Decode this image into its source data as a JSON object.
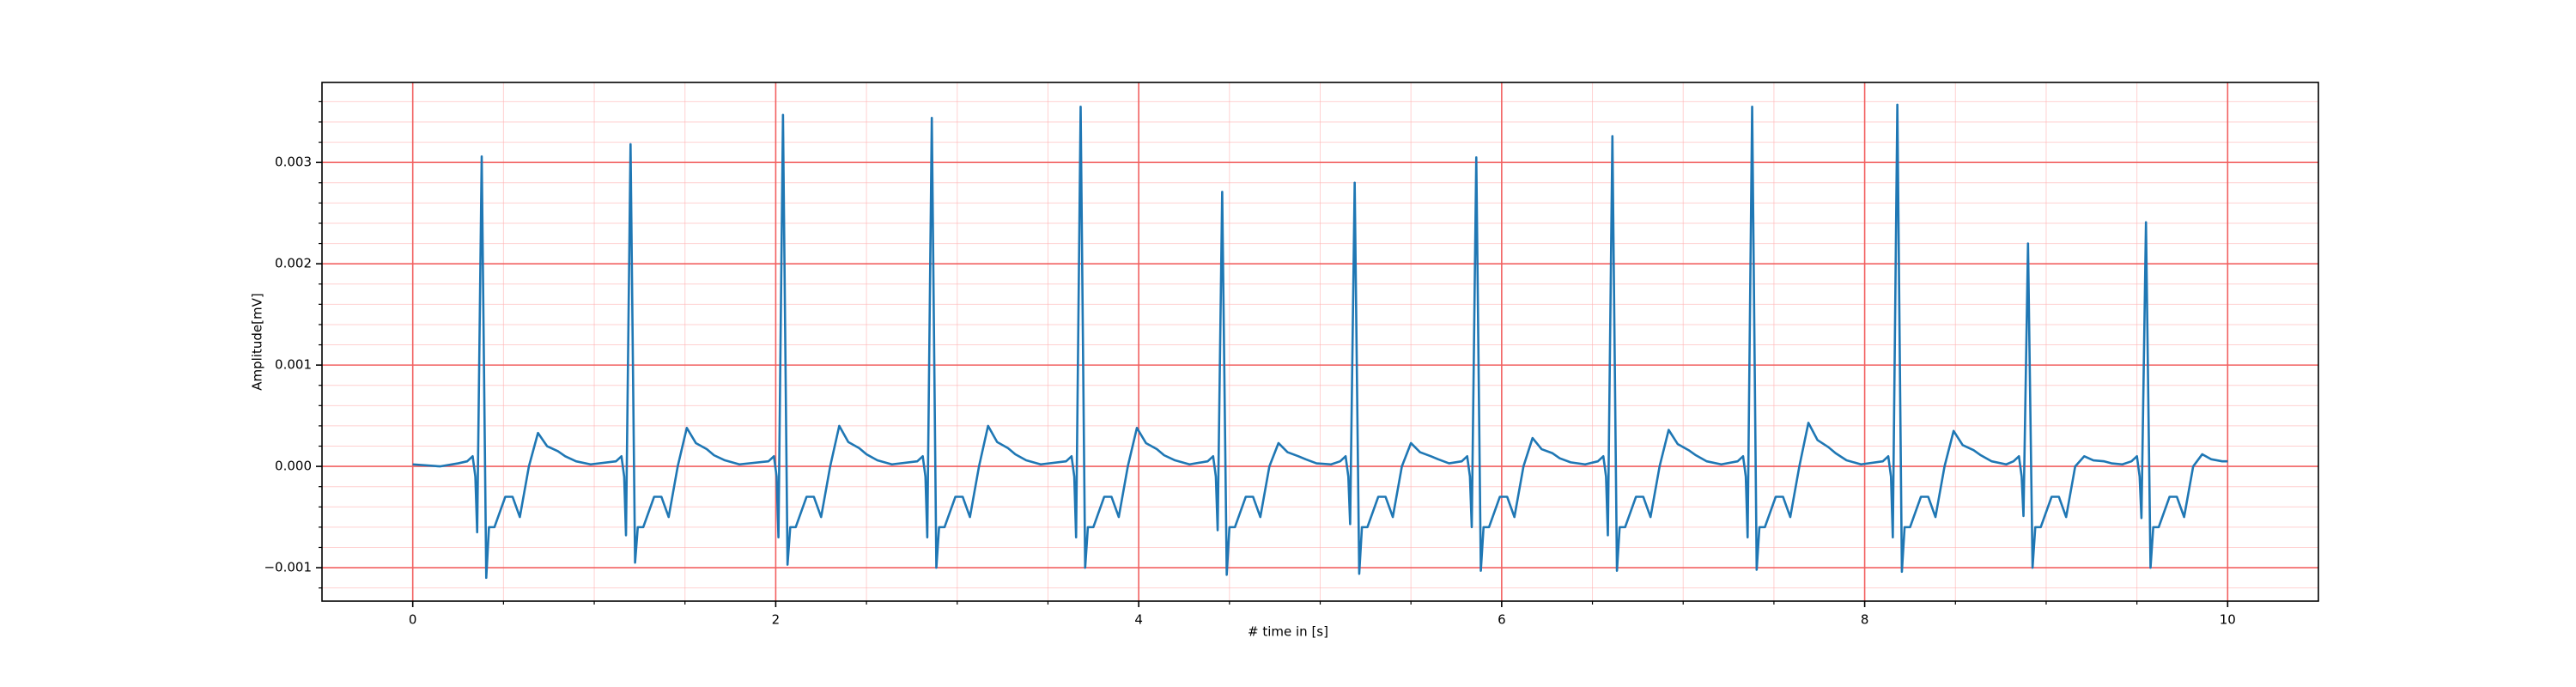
{
  "chart_data": {
    "type": "line",
    "xlabel": "# time in [s]",
    "ylabel": "Amplitude[mV]",
    "color": "#1f77b4",
    "grid": true,
    "minor_grid": true,
    "xlim": [
      -0.5,
      10.5
    ],
    "ylim": [
      -0.00133,
      0.00379
    ],
    "xticks": [
      0,
      2,
      4,
      6,
      8,
      10
    ],
    "yticks": [
      {
        "value": -0.001,
        "label": "−0.001"
      },
      {
        "value": 0,
        "label": "0.000"
      },
      {
        "value": 0.001,
        "label": "0.001"
      },
      {
        "value": 0.002,
        "label": "0.002"
      },
      {
        "value": 0.003,
        "label": "0.003"
      }
    ],
    "xminorticks": [
      0.5,
      1,
      1.5,
      2.5,
      3,
      3.5,
      4.5,
      5,
      5.5,
      6.5,
      7,
      7.5,
      8.5,
      9,
      9.5
    ],
    "yminorticks": [
      -0.0012,
      -0.0008,
      -0.0006,
      -0.0004,
      -0.0002,
      0.0002,
      0.0004,
      0.0006,
      0.0008,
      0.0012,
      0.0014,
      0.0016,
      0.0018,
      0.0022,
      0.0024,
      0.0026,
      0.0028,
      0.0032,
      0.0034,
      0.0036
    ],
    "x": [
      0,
      0.15,
      0.25,
      0.3,
      0.33,
      0.345,
      0.355,
      0.38,
      0.405,
      0.42,
      0.45,
      0.51,
      0.55,
      0.59,
      0.64,
      0.69,
      0.74,
      0.8,
      0.84,
      0.9,
      0.98,
      1.12,
      1.15,
      1.165,
      1.175,
      1.2,
      1.225,
      1.24,
      1.27,
      1.33,
      1.37,
      1.41,
      1.46,
      1.51,
      1.56,
      1.62,
      1.66,
      1.72,
      1.8,
      1.96,
      1.99,
      2.005,
      2.015,
      2.04,
      2.065,
      2.08,
      2.11,
      2.17,
      2.21,
      2.25,
      2.3,
      2.35,
      2.4,
      2.46,
      2.5,
      2.56,
      2.64,
      2.78,
      2.81,
      2.825,
      2.835,
      2.86,
      2.885,
      2.9,
      2.93,
      2.99,
      3.03,
      3.07,
      3.12,
      3.17,
      3.22,
      3.28,
      3.32,
      3.38,
      3.46,
      3.6,
      3.63,
      3.645,
      3.655,
      3.68,
      3.705,
      3.72,
      3.75,
      3.81,
      3.85,
      3.89,
      3.94,
      3.99,
      4.04,
      4.1,
      4.14,
      4.2,
      4.28,
      4.38,
      4.41,
      4.425,
      4.435,
      4.46,
      4.485,
      4.5,
      4.53,
      4.59,
      4.63,
      4.67,
      4.72,
      4.77,
      4.82,
      4.88,
      4.92,
      4.98,
      5.06,
      5.11,
      5.14,
      5.155,
      5.165,
      5.19,
      5.215,
      5.23,
      5.26,
      5.32,
      5.36,
      5.4,
      5.45,
      5.5,
      5.55,
      5.61,
      5.65,
      5.71,
      5.78,
      5.81,
      5.825,
      5.835,
      5.86,
      5.885,
      5.9,
      5.93,
      5.99,
      6.03,
      6.07,
      6.12,
      6.17,
      6.22,
      6.28,
      6.32,
      6.38,
      6.46,
      6.53,
      6.56,
      6.575,
      6.585,
      6.61,
      6.635,
      6.65,
      6.68,
      6.74,
      6.78,
      6.82,
      6.87,
      6.92,
      6.97,
      7.03,
      7.07,
      7.13,
      7.21,
      7.3,
      7.33,
      7.345,
      7.355,
      7.38,
      7.405,
      7.42,
      7.45,
      7.51,
      7.55,
      7.59,
      7.64,
      7.69,
      7.74,
      7.8,
      7.84,
      7.9,
      7.98,
      8.1,
      8.13,
      8.145,
      8.155,
      8.18,
      8.205,
      8.22,
      8.25,
      8.31,
      8.35,
      8.39,
      8.44,
      8.49,
      8.54,
      8.6,
      8.64,
      8.7,
      8.78,
      8.82,
      8.85,
      8.865,
      8.875,
      8.9,
      8.925,
      8.94,
      8.97,
      9.03,
      9.07,
      9.11,
      9.16,
      9.21,
      9.26,
      9.32,
      9.36,
      9.42,
      9.47,
      9.5,
      9.515,
      9.525,
      9.55,
      9.575,
      9.59,
      9.62,
      9.68,
      9.72,
      9.76,
      9.81,
      9.86,
      9.91,
      9.97,
      10.0
    ],
    "values": [
      2e-05,
      0,
      3e-05,
      5e-05,
      0.0001,
      -0.0001,
      -0.00065,
      0.00306,
      -0.0011,
      -0.0006,
      -0.0006,
      -0.0003,
      -0.0003,
      -0.0005,
      0,
      0.00033,
      0.0002,
      0.00015,
      0.0001,
      5e-05,
      2e-05,
      5e-05,
      0.0001,
      -0.0001,
      -0.00068,
      0.00318,
      -0.00095,
      -0.0006,
      -0.0006,
      -0.0003,
      -0.0003,
      -0.0005,
      0,
      0.00038,
      0.00023,
      0.00017,
      0.00011,
      6e-05,
      2e-05,
      5e-05,
      0.0001,
      -0.0001,
      -0.0007,
      0.00347,
      -0.00097,
      -0.0006,
      -0.0006,
      -0.0003,
      -0.0003,
      -0.0005,
      0,
      0.0004,
      0.00024,
      0.00018,
      0.00012,
      6e-05,
      2e-05,
      5e-05,
      0.0001,
      -0.0001,
      -0.0007,
      0.00344,
      -0.001,
      -0.0006,
      -0.0006,
      -0.0003,
      -0.0003,
      -0.0005,
      0,
      0.0004,
      0.00024,
      0.00018,
      0.00012,
      6e-05,
      2e-05,
      5e-05,
      0.0001,
      -0.0001,
      -0.0007,
      0.00355,
      -0.001,
      -0.0006,
      -0.0006,
      -0.0003,
      -0.0003,
      -0.0005,
      0,
      0.00038,
      0.00023,
      0.00017,
      0.00011,
      6e-05,
      2e-05,
      5e-05,
      0.0001,
      -0.0001,
      -0.00063,
      0.00271,
      -0.00107,
      -0.0006,
      -0.0006,
      -0.0003,
      -0.0003,
      -0.0005,
      0,
      0.00023,
      0.00014,
      0.0001,
      7e-05,
      3e-05,
      2e-05,
      5e-05,
      0.0001,
      -0.0001,
      -0.00057,
      0.0028,
      -0.00106,
      -0.0006,
      -0.0006,
      -0.0003,
      -0.0003,
      -0.0005,
      0,
      0.00023,
      0.00014,
      0.0001,
      7e-05,
      3e-05,
      5e-05,
      0.0001,
      -0.0001,
      -0.0006,
      0.00305,
      -0.00103,
      -0.0006,
      -0.0006,
      -0.0003,
      -0.0003,
      -0.0005,
      0,
      0.00028,
      0.00017,
      0.00013,
      8e-05,
      4e-05,
      2e-05,
      5e-05,
      0.0001,
      -0.0001,
      -0.00068,
      0.00326,
      -0.00103,
      -0.0006,
      -0.0006,
      -0.0003,
      -0.0003,
      -0.0005,
      0,
      0.00036,
      0.00022,
      0.00016,
      0.00011,
      5e-05,
      2e-05,
      5e-05,
      0.0001,
      -0.0001,
      -0.0007,
      0.00355,
      -0.00102,
      -0.0006,
      -0.0006,
      -0.0003,
      -0.0003,
      -0.0005,
      0,
      0.00043,
      0.00026,
      0.00019,
      0.00013,
      6e-05,
      2e-05,
      5e-05,
      0.0001,
      -0.0001,
      -0.0007,
      0.00357,
      -0.00104,
      -0.0006,
      -0.0006,
      -0.0003,
      -0.0003,
      -0.0005,
      0,
      0.00035,
      0.00021,
      0.00016,
      0.00011,
      5e-05,
      2e-05,
      5e-05,
      0.0001,
      -0.0001,
      -0.00049,
      0.0022,
      -0.001,
      -0.0006,
      -0.0006,
      -0.0003,
      -0.0003,
      -0.0005,
      0,
      0.0001,
      6e-05,
      5e-05,
      3e-05,
      2e-05,
      5e-05,
      0.0001,
      -0.0001,
      -0.00051,
      0.00241,
      -0.001,
      -0.0006,
      -0.0006,
      -0.0003,
      -0.0003,
      -0.0005,
      0,
      0.00012,
      7e-05,
      5e-05,
      5e-05
    ]
  }
}
